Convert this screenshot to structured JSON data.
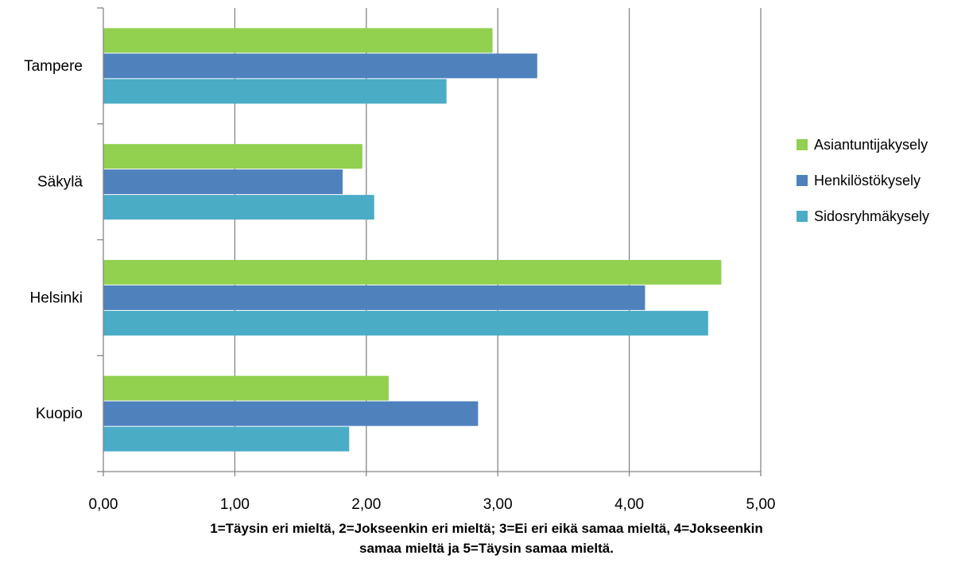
{
  "chart_data": {
    "type": "bar",
    "orientation": "horizontal",
    "title": "",
    "categories": [
      "Tampere",
      "Säkylä",
      "Helsinki",
      "Kuopio"
    ],
    "series": [
      {
        "name": "Asiantuntijakysely",
        "color": "#92d050",
        "values": [
          2.96,
          1.97,
          4.7,
          2.17
        ]
      },
      {
        "name": "Henkilöstökysely",
        "color": "#4f81bd",
        "values": [
          3.3,
          1.82,
          4.12,
          2.85
        ]
      },
      {
        "name": "Sidosryhmäkysely",
        "color": "#4bacc6",
        "values": [
          2.61,
          2.06,
          4.6,
          1.87
        ]
      }
    ],
    "xlim": [
      0,
      5
    ],
    "xticks": [
      "0,00",
      "1,00",
      "2,00",
      "3,00",
      "4,00",
      "5,00"
    ],
    "xlabel": [
      "1=Täysin  eri mieltä, 2=Jokseenkin  eri mieltä; 3=Ei eri eikä samaa  mieltä, 4=Jokseenkin",
      "samaa  mieltä ja 5=Täysin  samaa  mieltä."
    ],
    "ylabel": "",
    "grid": "vertical",
    "legend_position": "right",
    "gridline_color": "#868686"
  }
}
